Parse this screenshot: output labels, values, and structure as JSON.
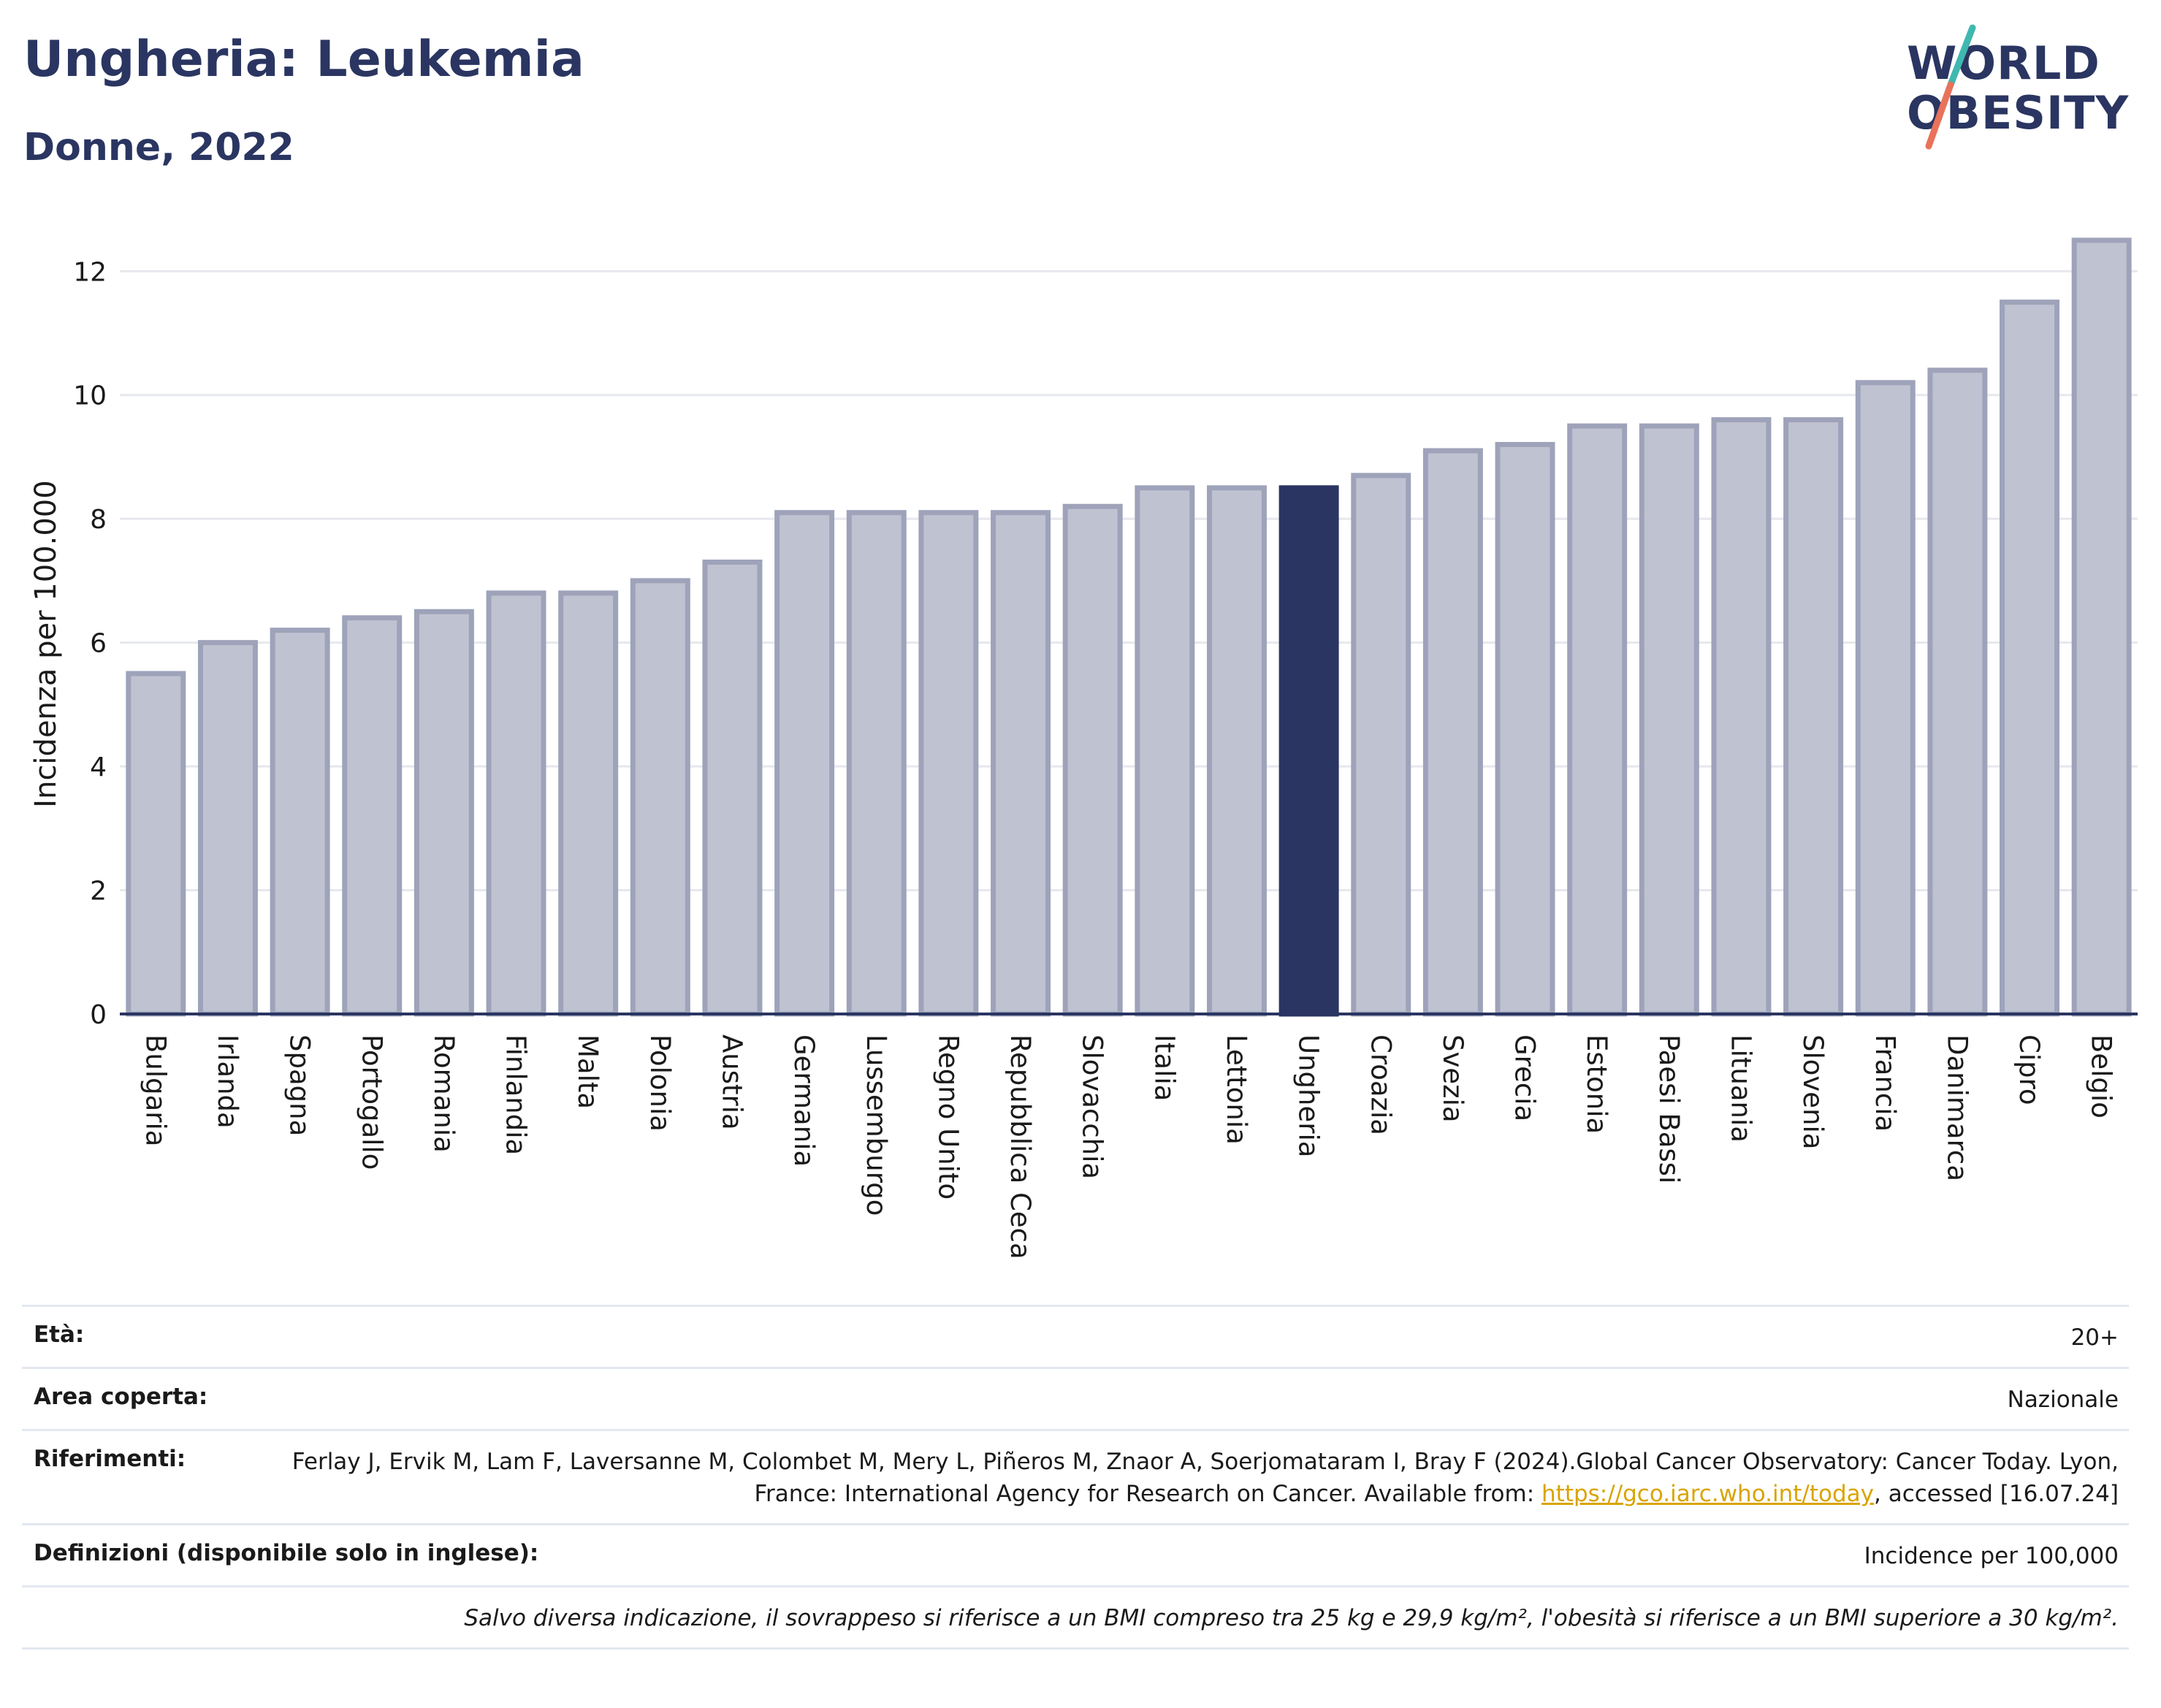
{
  "header": {
    "title": "Ungheria: Leukemia",
    "subtitle": "Donne, 2022"
  },
  "logo": {
    "line1": "WORLD",
    "line2": "OBESITY",
    "colors": {
      "text": "#2a3561",
      "slash_top": "#3fb8b0",
      "slash_bottom": "#e8735a"
    }
  },
  "chart_data": {
    "type": "bar",
    "ylabel": "Incidenza per 100.000",
    "xlabel": "",
    "ylim": [
      0,
      12.9
    ],
    "yticks": [
      0,
      2,
      4,
      6,
      8,
      10,
      12
    ],
    "grid": true,
    "highlight": "Ungheria",
    "colors": {
      "bar": "#bfc2d0",
      "bar_border": "#9ea3ba",
      "highlight": "#2a3561",
      "axis": "#2a3561",
      "grid": "#e6e8ee"
    },
    "categories": [
      "Bulgaria",
      "Irlanda",
      "Spagna",
      "Portogallo",
      "Romania",
      "Finlandia",
      "Malta",
      "Polonia",
      "Austria",
      "Germania",
      "Lussemburgo",
      "Regno Unito",
      "Repubblica Ceca",
      "Slovacchia",
      "Italia",
      "Lettonia",
      "Ungheria",
      "Croazia",
      "Svezia",
      "Grecia",
      "Estonia",
      "Paesi Bassi",
      "Lituania",
      "Slovenia",
      "Francia",
      "Danimarca",
      "Cipro",
      "Belgio"
    ],
    "values": [
      5.5,
      6.0,
      6.2,
      6.4,
      6.5,
      6.8,
      6.8,
      7.0,
      7.3,
      8.1,
      8.1,
      8.1,
      8.1,
      8.2,
      8.5,
      8.5,
      8.5,
      8.7,
      9.1,
      9.2,
      9.5,
      9.5,
      9.6,
      9.6,
      10.2,
      10.4,
      11.5,
      12.5
    ]
  },
  "meta": {
    "age_label": "Età:",
    "age_value": "20+",
    "area_label": "Area coperta:",
    "area_value": "Nazionale",
    "refs_label": "Riferimenti:",
    "refs_text_before": "Ferlay J, Ervik M, Lam F, Laversanne M, Colombet M, Mery L, Piñeros M, Znaor A, Soerjomataram I, Bray F (2024).Global Cancer Observatory: Cancer Today. Lyon, France: International Agency for Research on Cancer. Available from: ",
    "refs_link": "https://gco.iarc.who.int/today",
    "refs_text_after": ", accessed [16.07.24]",
    "defs_label": "Definizioni (disponibile solo in inglese):",
    "defs_value": "Incidence per 100,000",
    "note": "Salvo diversa indicazione, il sovrappeso si riferisce a un BMI compreso tra 25 kg e 29,9 kg/m², l'obesità si riferisce a un BMI superiore a 30 kg/m²."
  }
}
